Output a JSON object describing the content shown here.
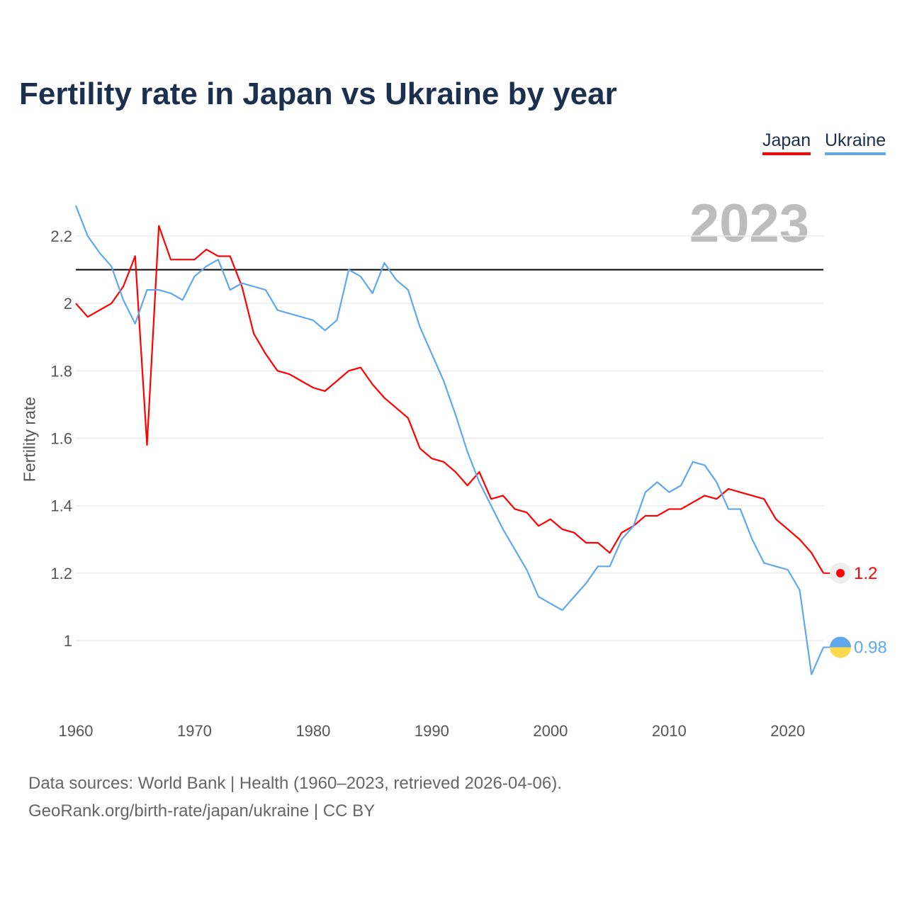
{
  "chart_data": {
    "type": "line",
    "title": "Fertility rate in Japan vs Ukraine by year",
    "xlabel": "",
    "ylabel": "Fertility rate",
    "year_label": "2023",
    "xlim": [
      1960,
      2023
    ],
    "ylim": [
      0.85,
      2.3
    ],
    "x_ticks": [
      1960,
      1970,
      1980,
      1990,
      2000,
      2010,
      2020
    ],
    "y_ticks": [
      1,
      1.2,
      1.4,
      1.6,
      1.8,
      2,
      2.2
    ],
    "y_tick_labels": [
      "1",
      "1.2",
      "1.4",
      "1.6",
      "1.8",
      "2",
      "2.2"
    ],
    "x_tick_labels": [
      "1960",
      "1970",
      "1980",
      "1990",
      "2000",
      "2010",
      "2020"
    ],
    "grid": true,
    "legend_position": "top-right",
    "reference_line": 2.1,
    "x": [
      1960,
      1961,
      1962,
      1963,
      1964,
      1965,
      1966,
      1967,
      1968,
      1969,
      1970,
      1971,
      1972,
      1973,
      1974,
      1975,
      1976,
      1977,
      1978,
      1979,
      1980,
      1981,
      1982,
      1983,
      1984,
      1985,
      1986,
      1987,
      1988,
      1989,
      1990,
      1991,
      1992,
      1993,
      1994,
      1995,
      1996,
      1997,
      1998,
      1999,
      2000,
      2001,
      2002,
      2003,
      2004,
      2005,
      2006,
      2007,
      2008,
      2009,
      2010,
      2011,
      2012,
      2013,
      2014,
      2015,
      2016,
      2017,
      2018,
      2019,
      2020,
      2021,
      2022,
      2023
    ],
    "series": [
      {
        "name": "Japan",
        "color": "#ff0000",
        "end_label": "1.2",
        "values": [
          2.0,
          1.96,
          1.98,
          2.0,
          2.05,
          2.14,
          1.58,
          2.23,
          2.13,
          2.13,
          2.13,
          2.16,
          2.14,
          2.14,
          2.05,
          1.91,
          1.85,
          1.8,
          1.79,
          1.77,
          1.75,
          1.74,
          1.77,
          1.8,
          1.81,
          1.76,
          1.72,
          1.69,
          1.66,
          1.57,
          1.54,
          1.53,
          1.5,
          1.46,
          1.5,
          1.42,
          1.43,
          1.39,
          1.38,
          1.34,
          1.36,
          1.33,
          1.32,
          1.29,
          1.29,
          1.26,
          1.32,
          1.34,
          1.37,
          1.37,
          1.39,
          1.39,
          1.41,
          1.43,
          1.42,
          1.45,
          1.44,
          1.43,
          1.42,
          1.36,
          1.33,
          1.3,
          1.26,
          1.2
        ]
      },
      {
        "name": "Ukraine",
        "color": "#5fa8ee",
        "end_label": "0.98",
        "values": [
          2.29,
          2.2,
          2.15,
          2.11,
          2.01,
          1.94,
          2.04,
          2.04,
          2.03,
          2.01,
          2.08,
          2.11,
          2.13,
          2.04,
          2.06,
          2.05,
          2.04,
          1.98,
          1.97,
          1.96,
          1.95,
          1.92,
          1.95,
          2.1,
          2.08,
          2.03,
          2.12,
          2.07,
          2.04,
          1.93,
          1.85,
          1.77,
          1.67,
          1.56,
          1.47,
          1.4,
          1.33,
          1.27,
          1.21,
          1.13,
          1.11,
          1.09,
          1.13,
          1.17,
          1.22,
          1.22,
          1.3,
          1.34,
          1.44,
          1.47,
          1.44,
          1.46,
          1.53,
          1.52,
          1.47,
          1.39,
          1.39,
          1.3,
          1.23,
          1.22,
          1.21,
          1.15,
          0.9,
          0.98
        ]
      }
    ]
  },
  "footer": {
    "line1": "Data sources: World Bank | Health (1960–2023, retrieved 2026-04-06).",
    "line2": "GeoRank.org/birth-rate/japan/ukraine | CC BY"
  }
}
